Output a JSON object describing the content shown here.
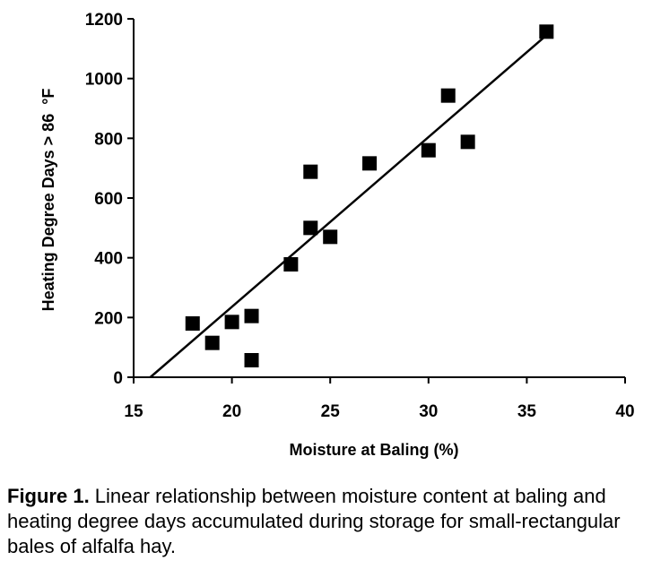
{
  "chart_data": {
    "type": "scatter",
    "xlabel": "Moisture at Baling (%)",
    "ylabel": "Heating Degree Days > 86  °F",
    "xlim": [
      15,
      40
    ],
    "ylim": [
      0,
      1200
    ],
    "x_ticks": [
      15,
      20,
      25,
      30,
      35,
      40
    ],
    "y_ticks": [
      0,
      200,
      400,
      600,
      800,
      1000,
      1200
    ],
    "grid": false,
    "legend": "none",
    "marker": "square",
    "marker_color": "#000000",
    "points": [
      {
        "x": 18,
        "y": 180
      },
      {
        "x": 19,
        "y": 115
      },
      {
        "x": 20,
        "y": 185
      },
      {
        "x": 21,
        "y": 205
      },
      {
        "x": 21,
        "y": 57
      },
      {
        "x": 23,
        "y": 378
      },
      {
        "x": 24,
        "y": 688
      },
      {
        "x": 24,
        "y": 500
      },
      {
        "x": 25,
        "y": 470
      },
      {
        "x": 27,
        "y": 716
      },
      {
        "x": 30,
        "y": 760
      },
      {
        "x": 31,
        "y": 943
      },
      {
        "x": 32,
        "y": 788
      },
      {
        "x": 36,
        "y": 1157
      }
    ],
    "trendline": {
      "x": [
        15.85,
        36
      ],
      "y": [
        0,
        1145
      ]
    }
  },
  "caption": {
    "label": "Figure 1.",
    "text": " Linear relationship between moisture content at baling and heating degree days accumulated during storage for small-rectangular bales of alfalfa hay."
  }
}
